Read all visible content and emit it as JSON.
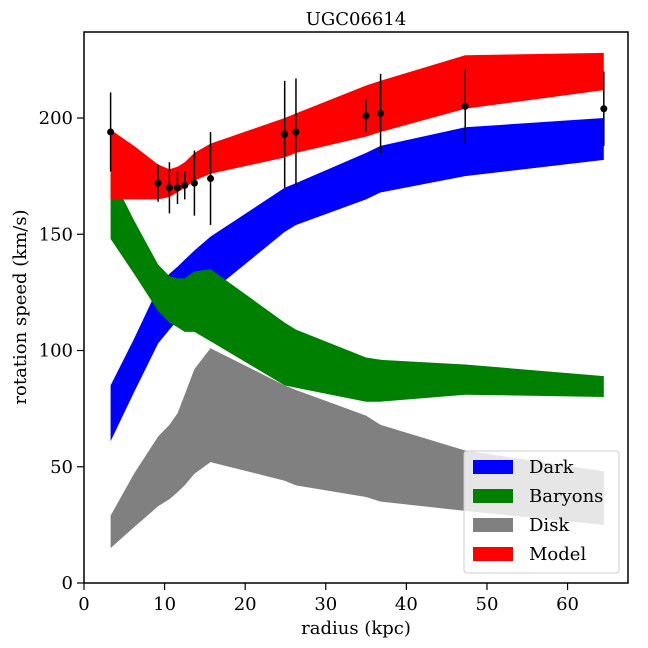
{
  "chart_data": {
    "type": "area",
    "title": "UGC06614",
    "xlabel": "radius (kpc)",
    "ylabel": "rotation speed (km/s)",
    "xlim": [
      0,
      67.5
    ],
    "ylim": [
      0,
      237
    ],
    "xticks": [
      0,
      10,
      20,
      30,
      40,
      50,
      60
    ],
    "yticks": [
      0,
      50,
      100,
      150,
      200
    ],
    "grid": false,
    "legend_position": "bottom-right",
    "series": [
      {
        "name": "Dark",
        "color": "#0000ff",
        "x": [
          3.3,
          6.2,
          9.2,
          10.6,
          11.6,
          12.5,
          13.7,
          15.7,
          24.9,
          26.3,
          35.0,
          36.8,
          47.3,
          64.5
        ],
        "lower": [
          61,
          82,
          103,
          109,
          113,
          117,
          121,
          125,
          151,
          154,
          165,
          168,
          175,
          182
        ],
        "upper": [
          85,
          105,
          127,
          133,
          136,
          139,
          143,
          149,
          170,
          172,
          185,
          188,
          196,
          200
        ]
      },
      {
        "name": "Baryons",
        "color": "#008000",
        "x": [
          3.3,
          6.2,
          9.2,
          10.6,
          11.6,
          12.5,
          13.7,
          15.7,
          24.9,
          26.3,
          35.0,
          36.8,
          47.3,
          64.5
        ],
        "lower": [
          148,
          133,
          117,
          112,
          110,
          108,
          108,
          104,
          85,
          84,
          78,
          78,
          81,
          80
        ],
        "upper": [
          176,
          156,
          137,
          132,
          131,
          131,
          134,
          135,
          112,
          109,
          97,
          96,
          94,
          89
        ]
      },
      {
        "name": "Disk",
        "color": "#808080",
        "x": [
          3.3,
          6.2,
          9.2,
          10.6,
          11.6,
          12.5,
          13.7,
          15.7,
          24.9,
          26.3,
          35.0,
          36.8,
          47.3,
          64.5
        ],
        "lower": [
          15,
          24,
          33,
          36,
          39,
          42,
          47,
          52,
          44,
          42,
          37,
          35,
          31,
          25
        ],
        "upper": [
          29,
          47,
          63,
          68,
          73,
          81,
          92,
          101,
          85,
          83,
          72,
          68,
          57,
          48
        ]
      },
      {
        "name": "Model",
        "color": "#ff0000",
        "x": [
          3.3,
          6.2,
          9.2,
          10.6,
          11.6,
          12.5,
          13.7,
          15.7,
          24.9,
          26.3,
          35.0,
          36.8,
          47.3,
          64.5
        ],
        "lower": [
          165,
          165,
          165,
          166,
          168,
          170,
          173,
          176,
          183,
          185,
          192,
          194,
          204,
          212
        ],
        "upper": [
          195,
          188,
          180,
          178,
          179,
          181,
          185,
          189,
          200,
          202,
          214,
          216,
          227,
          228
        ]
      }
    ],
    "observations": {
      "x": [
        3.3,
        9.2,
        10.6,
        11.6,
        12.5,
        13.7,
        15.7,
        24.9,
        26.3,
        35.0,
        36.8,
        47.3,
        64.5
      ],
      "y": [
        194,
        172,
        170,
        170,
        171,
        172,
        174,
        193,
        194,
        201,
        202,
        205,
        204
      ],
      "yerr": [
        17,
        8,
        11,
        7,
        6,
        14,
        20,
        23,
        23,
        7,
        17,
        16,
        16
      ]
    }
  }
}
